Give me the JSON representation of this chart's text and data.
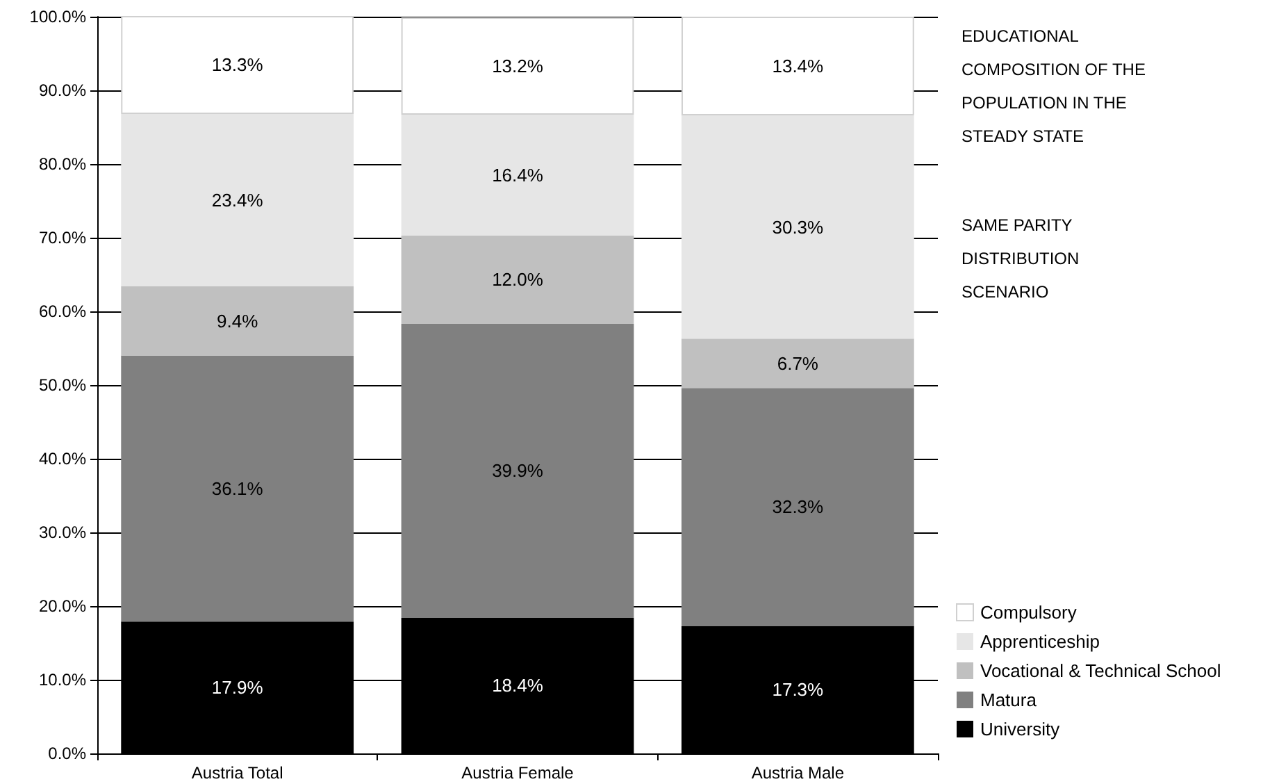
{
  "chart_data": {
    "type": "bar",
    "stacked": true,
    "title": "EDUCATIONAL COMPOSITION OF THE POPULATION IN THE STEADY STATE",
    "subtitle": "SAME PARITY DISTRIBUTION SCENARIO",
    "categories": [
      "Austria Total",
      "Austria Female",
      "Austria Male"
    ],
    "series": [
      {
        "name": "University",
        "color": "#000000",
        "values": [
          17.9,
          18.4,
          17.3
        ],
        "value_labels": [
          "17.9%",
          "18.4%",
          "17.3%"
        ]
      },
      {
        "name": "Matura",
        "color": "#808080",
        "values": [
          36.1,
          39.9,
          32.3
        ],
        "value_labels": [
          "36.1%",
          "39.9%",
          "32.3%"
        ]
      },
      {
        "name": "Vocational & Technical School",
        "color": "#c0c0c0",
        "values": [
          9.4,
          12.0,
          6.7
        ],
        "value_labels": [
          "9.4%",
          "12.0%",
          "6.7%"
        ]
      },
      {
        "name": "Apprenticeship",
        "color": "#e6e6e6",
        "values": [
          23.4,
          16.4,
          30.3
        ],
        "value_labels": [
          "23.4%",
          "16.4%",
          "30.3%"
        ]
      },
      {
        "name": "Compulsory",
        "color": "#ffffff",
        "values": [
          13.3,
          13.2,
          13.4
        ],
        "value_labels": [
          "13.3%",
          "13.2%",
          "13.4%"
        ]
      }
    ],
    "ylim": [
      0,
      100
    ],
    "yticks": [
      {
        "value": 0,
        "label": "0.0%"
      },
      {
        "value": 10,
        "label": "10.0%"
      },
      {
        "value": 20,
        "label": "20.0%"
      },
      {
        "value": 30,
        "label": "30.0%"
      },
      {
        "value": 40,
        "label": "40.0%"
      },
      {
        "value": 50,
        "label": "50.0%"
      },
      {
        "value": 60,
        "label": "60.0%"
      },
      {
        "value": 70,
        "label": "70.0%"
      },
      {
        "value": 80,
        "label": "80.0%"
      },
      {
        "value": 90,
        "label": "90.0%"
      },
      {
        "value": 100,
        "label": "100.0%"
      }
    ],
    "grid": "y",
    "legend": "bottom right"
  }
}
